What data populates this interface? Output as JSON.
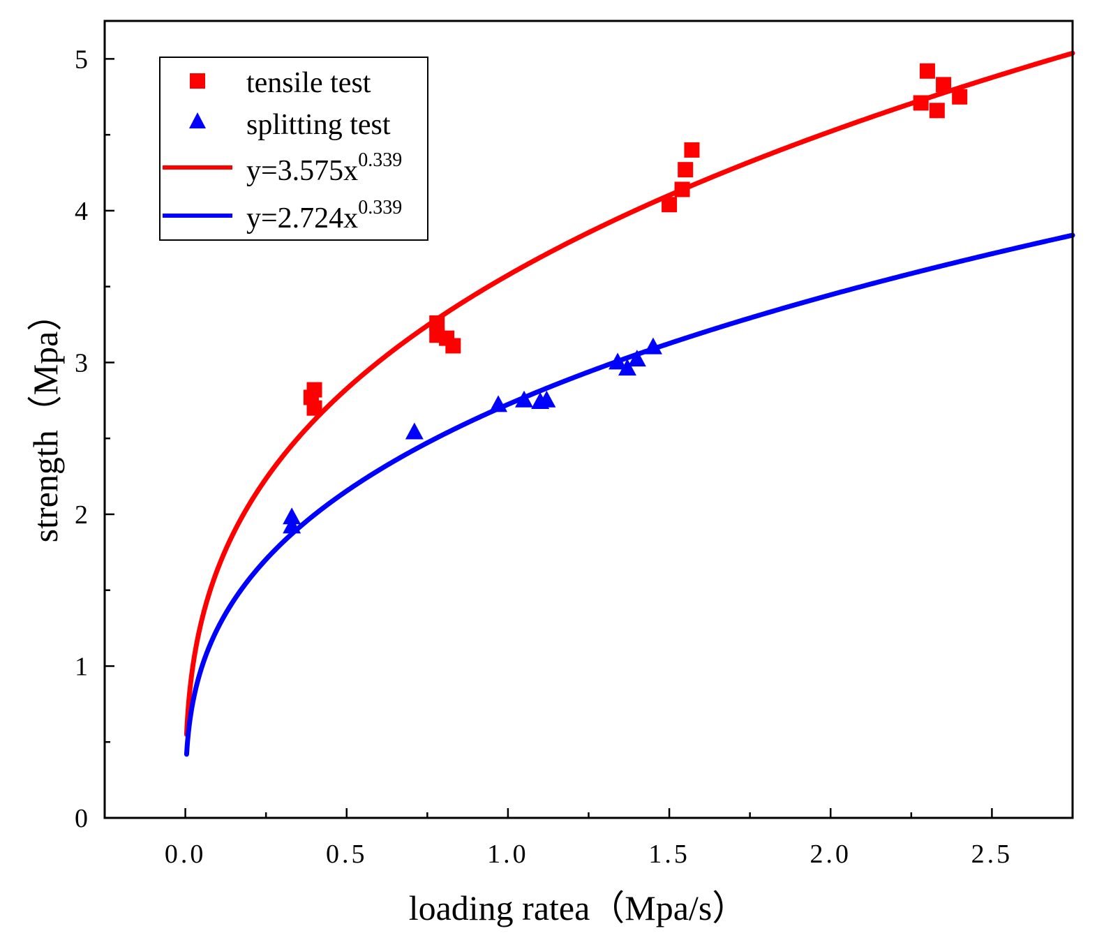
{
  "chart_data": {
    "type": "scatter",
    "title": "",
    "xlabel": "loading ratea（Mpa/s）",
    "ylabel": "strength（Mpa）",
    "xlim": [
      -0.25,
      2.75
    ],
    "ylim": [
      0,
      5.25
    ],
    "x_ticks": [
      0.0,
      0.5,
      1.0,
      1.5,
      2.0,
      2.5
    ],
    "x_tick_labels": [
      "0.0",
      "0.5",
      "1.0",
      "1.5",
      "2.0",
      "2.5"
    ],
    "y_ticks": [
      0,
      1,
      2,
      3,
      4,
      5
    ],
    "y_tick_labels": [
      "0",
      "1",
      "2",
      "3",
      "4",
      "5"
    ],
    "grid": false,
    "legend_position": "top-left",
    "series": [
      {
        "name": "tensile test",
        "kind": "scatter",
        "marker": "square",
        "color": "#ff0000",
        "points": [
          [
            0.39,
            2.77
          ],
          [
            0.4,
            2.82
          ],
          [
            0.4,
            2.7
          ],
          [
            0.78,
            3.26
          ],
          [
            0.78,
            3.18
          ],
          [
            0.81,
            3.16
          ],
          [
            0.83,
            3.11
          ],
          [
            1.5,
            4.04
          ],
          [
            1.54,
            4.14
          ],
          [
            1.55,
            4.27
          ],
          [
            1.57,
            4.4
          ],
          [
            2.28,
            4.71
          ],
          [
            2.3,
            4.92
          ],
          [
            2.33,
            4.66
          ],
          [
            2.35,
            4.83
          ],
          [
            2.4,
            4.75
          ]
        ]
      },
      {
        "name": "splitting test",
        "kind": "scatter",
        "marker": "triangle",
        "color": "#0000ff",
        "points": [
          [
            0.33,
            1.92
          ],
          [
            0.33,
            1.98
          ],
          [
            0.71,
            2.54
          ],
          [
            0.97,
            2.72
          ],
          [
            1.05,
            2.75
          ],
          [
            1.1,
            2.74
          ],
          [
            1.12,
            2.75
          ],
          [
            1.34,
            3.0
          ],
          [
            1.37,
            2.96
          ],
          [
            1.4,
            3.02
          ],
          [
            1.45,
            3.1
          ]
        ]
      },
      {
        "name": "y=3.575x",
        "exponent_label": "0.339",
        "kind": "fit",
        "color": "#ff0000",
        "coef": 3.575,
        "exponent": 0.339,
        "x_start": 0.004
      },
      {
        "name": "y=2.724x",
        "exponent_label": "0.339",
        "kind": "fit",
        "color": "#0000ff",
        "coef": 2.724,
        "exponent": 0.339,
        "x_start": 0.004
      }
    ]
  }
}
